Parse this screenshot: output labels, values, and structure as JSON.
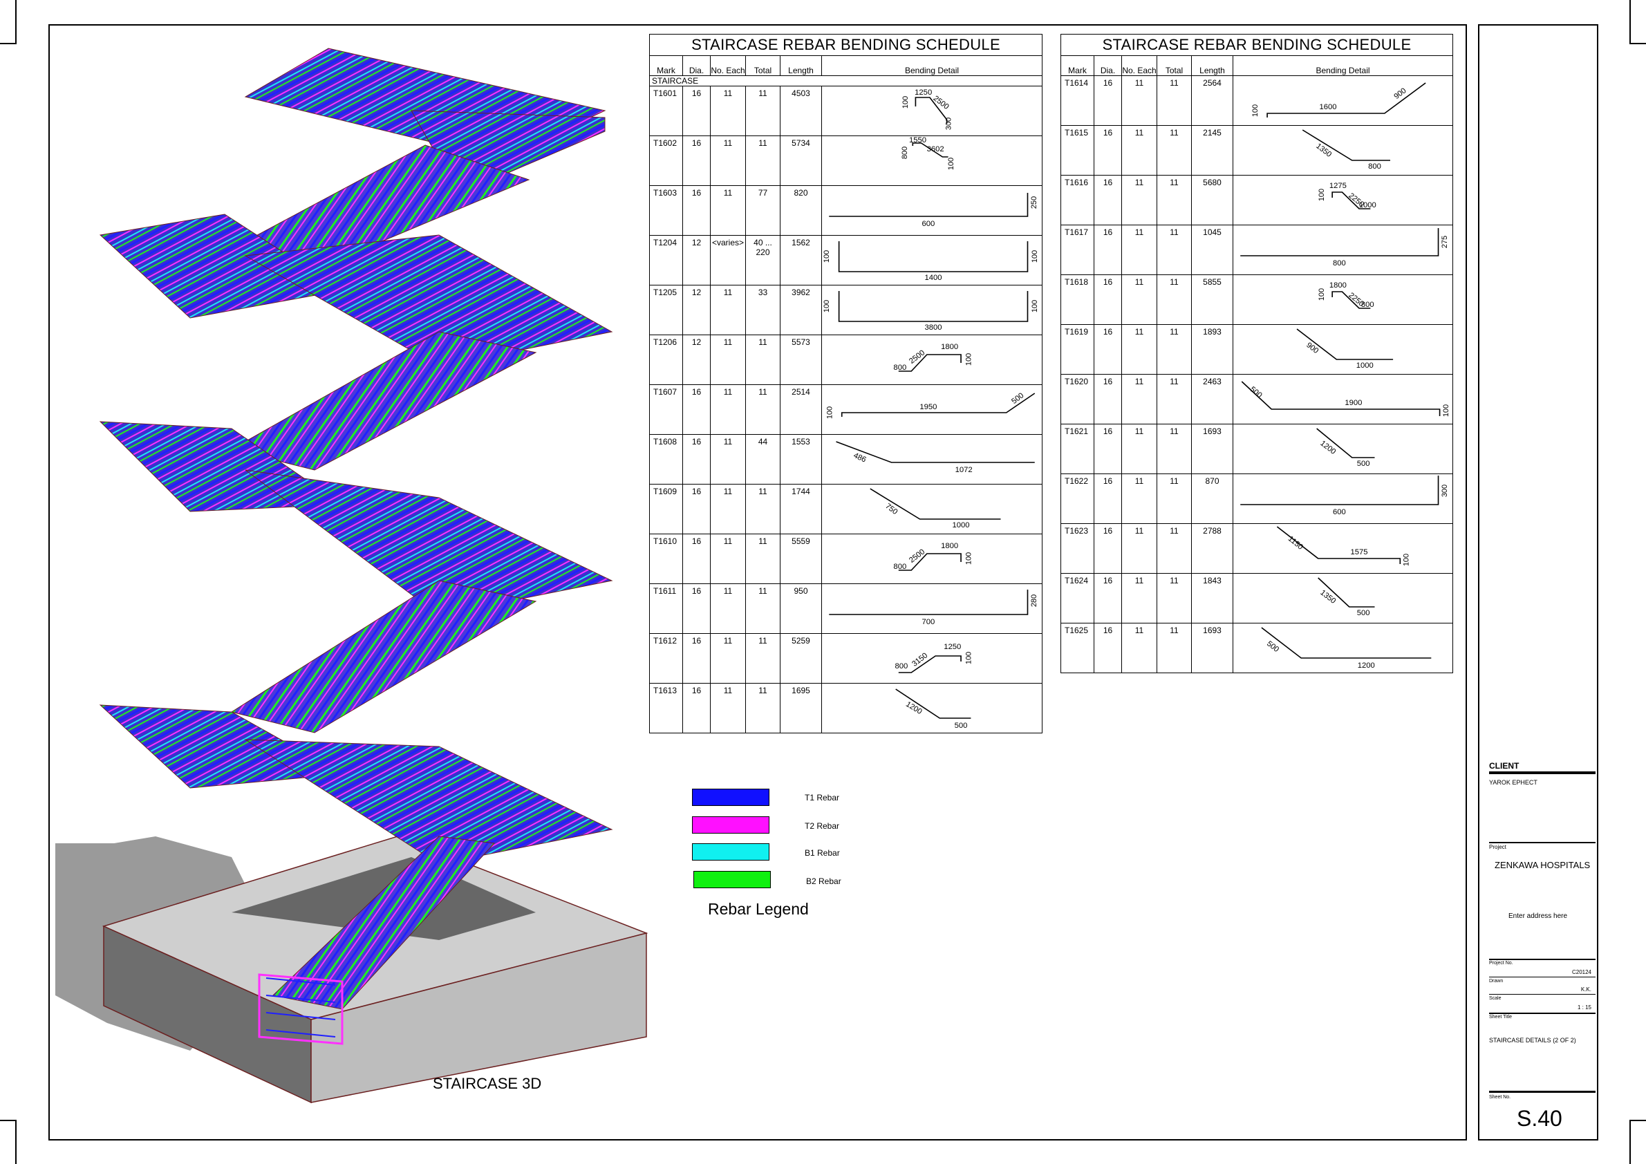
{
  "schedule_left": {
    "title": "STAIRCASE REBAR BENDING SCHEDULE",
    "headers": {
      "mark": "Mark",
      "dia": "Dia.",
      "each": "No. Each",
      "total": "Total",
      "length": "Length",
      "detail": "Bending Detail"
    },
    "group": "STAIRCASE",
    "rows": [
      {
        "mark": "T1601",
        "dia": "16",
        "each": "11",
        "total": "11",
        "length": "4503",
        "dims": [
          "100",
          "1250",
          "2500",
          "300"
        ]
      },
      {
        "mark": "T1602",
        "dia": "16",
        "each": "11",
        "total": "11",
        "length": "5734",
        "dims": [
          "800",
          "1550",
          "3602",
          "100"
        ]
      },
      {
        "mark": "T1603",
        "dia": "16",
        "each": "11",
        "total": "77",
        "length": "820",
        "dims": [
          "600",
          "250"
        ]
      },
      {
        "mark": "T1204",
        "dia": "12",
        "each": "<varies>",
        "total": "40 ... 220",
        "length": "1562",
        "dims": [
          "100",
          "1400",
          "100"
        ]
      },
      {
        "mark": "T1205",
        "dia": "12",
        "each": "11",
        "total": "33",
        "length": "3962",
        "dims": [
          "100",
          "3800",
          "100"
        ]
      },
      {
        "mark": "T1206",
        "dia": "12",
        "each": "11",
        "total": "11",
        "length": "5573",
        "dims": [
          "800",
          "2500",
          "1800",
          "100"
        ]
      },
      {
        "mark": "T1607",
        "dia": "16",
        "each": "11",
        "total": "11",
        "length": "2514",
        "dims": [
          "100",
          "1950",
          "500"
        ]
      },
      {
        "mark": "T1608",
        "dia": "16",
        "each": "11",
        "total": "44",
        "length": "1553",
        "dims": [
          "486",
          "1072"
        ]
      },
      {
        "mark": "T1609",
        "dia": "16",
        "each": "11",
        "total": "11",
        "length": "1744",
        "dims": [
          "750",
          "1000"
        ]
      },
      {
        "mark": "T1610",
        "dia": "16",
        "each": "11",
        "total": "11",
        "length": "5559",
        "dims": [
          "800",
          "2500",
          "1800",
          "100"
        ]
      },
      {
        "mark": "T1611",
        "dia": "16",
        "each": "11",
        "total": "11",
        "length": "950",
        "dims": [
          "700",
          "280"
        ]
      },
      {
        "mark": "T1612",
        "dia": "16",
        "each": "11",
        "total": "11",
        "length": "5259",
        "dims": [
          "800",
          "3150",
          "1250",
          "100"
        ]
      },
      {
        "mark": "T1613",
        "dia": "16",
        "each": "11",
        "total": "11",
        "length": "1695",
        "dims": [
          "1200",
          "500"
        ]
      }
    ]
  },
  "schedule_right": {
    "title": "STAIRCASE REBAR BENDING SCHEDULE",
    "headers": {
      "mark": "Mark",
      "dia": "Dia.",
      "each": "No. Each",
      "total": "Total",
      "length": "Length",
      "detail": "Bending Detail"
    },
    "rows": [
      {
        "mark": "T1614",
        "dia": "16",
        "each": "11",
        "total": "11",
        "length": "2564",
        "dims": [
          "100",
          "1600",
          "900"
        ]
      },
      {
        "mark": "T1615",
        "dia": "16",
        "each": "11",
        "total": "11",
        "length": "2145",
        "dims": [
          "1350",
          "800"
        ]
      },
      {
        "mark": "T1616",
        "dia": "16",
        "each": "11",
        "total": "11",
        "length": "5680",
        "dims": [
          "100",
          "1275",
          "2250",
          "1000"
        ]
      },
      {
        "mark": "T1617",
        "dia": "16",
        "each": "11",
        "total": "11",
        "length": "1045",
        "dims": [
          "800",
          "275"
        ]
      },
      {
        "mark": "T1618",
        "dia": "16",
        "each": "11",
        "total": "11",
        "length": "5855",
        "dims": [
          "100",
          "1800",
          "2250",
          "800"
        ]
      },
      {
        "mark": "T1619",
        "dia": "16",
        "each": "11",
        "total": "11",
        "length": "1893",
        "dims": [
          "900",
          "1000"
        ]
      },
      {
        "mark": "T1620",
        "dia": "16",
        "each": "11",
        "total": "11",
        "length": "2463",
        "dims": [
          "500",
          "1900",
          "100"
        ]
      },
      {
        "mark": "T1621",
        "dia": "16",
        "each": "11",
        "total": "11",
        "length": "1693",
        "dims": [
          "1200",
          "500"
        ]
      },
      {
        "mark": "T1622",
        "dia": "16",
        "each": "11",
        "total": "11",
        "length": "870",
        "dims": [
          "600",
          "300"
        ]
      },
      {
        "mark": "T1623",
        "dia": "16",
        "each": "11",
        "total": "11",
        "length": "2788",
        "dims": [
          "1150",
          "1575",
          "100"
        ]
      },
      {
        "mark": "T1624",
        "dia": "16",
        "each": "11",
        "total": "11",
        "length": "1843",
        "dims": [
          "1350",
          "500"
        ]
      },
      {
        "mark": "T1625",
        "dia": "16",
        "each": "11",
        "total": "11",
        "length": "1693",
        "dims": [
          "500",
          "1200"
        ]
      }
    ]
  },
  "legend": {
    "title": "Rebar Legend",
    "items": [
      {
        "label": "T1 Rebar",
        "color": "#1010ff"
      },
      {
        "label": "T2 Rebar",
        "color": "#ff10ff"
      },
      {
        "label": "B1 Rebar",
        "color": "#10f0f0"
      },
      {
        "label": "B2 Rebar",
        "color": "#10f010"
      }
    ]
  },
  "view_label": "STAIRCASE 3D",
  "colors": {
    "t1": "#1010ff",
    "t2": "#ff10ff",
    "b1": "#10f0f0",
    "b2": "#10f010",
    "concrete": "#8c8c8c",
    "slab_top": "#cfcfcf",
    "outline": "#6b2020"
  },
  "title_block": {
    "client_label": "CLIENT",
    "client_name": "YAROK EPHECT",
    "project_label": "Project",
    "project_name": "ZENKAWA HOSPITALS",
    "address": "Enter address here",
    "project_no_label": "Project No.",
    "project_no": "C20124",
    "drawn_label": "Drawn",
    "drawn": "K.K.",
    "scale_label": "Scale",
    "scale": "1 : 15",
    "sheet_title_label": "Sheet Title",
    "sheet_title": "STAIRCASE DETAILS (2 OF 2)",
    "sheet_no_label": "Sheet No.",
    "sheet_no": "S.40"
  }
}
